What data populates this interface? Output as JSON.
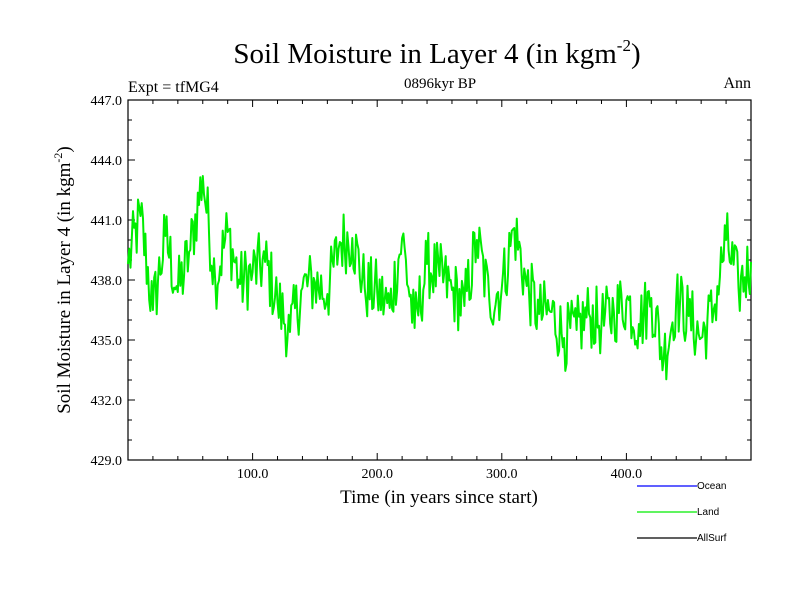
{
  "chart_data": {
    "type": "line",
    "title": "Soil Moisture in Layer 4 (in kgm",
    "title_superscript": "-2",
    "title_suffix": ")",
    "subtitle": "0896kyr BP",
    "left_label": "Expt = tfMG4",
    "right_label": "Ann",
    "xlabel": "Time (in years since start)",
    "ylabel": "Soil Moisture in Layer 4 (in kgm",
    "ylabel_superscript": "-2",
    "ylabel_suffix": ")",
    "xlim": [
      0,
      500
    ],
    "ylim": [
      429.0,
      447.0
    ],
    "xticks": [
      100,
      200,
      300,
      400
    ],
    "xtick_labels": [
      "100.0",
      "200.0",
      "300.0",
      "400.0"
    ],
    "yticks": [
      429,
      432,
      435,
      438,
      441,
      444,
      447
    ],
    "ytick_labels": [
      "429.0",
      "432.0",
      "435.0",
      "438.0",
      "441.0",
      "444.0",
      "447.0"
    ],
    "legend": [
      {
        "name": "Ocean",
        "color": "#0000ff"
      },
      {
        "name": "Land",
        "color": "#00ee00"
      },
      {
        "name": "AllSurf",
        "color": "#000000"
      }
    ],
    "series": [
      {
        "name": "Land",
        "color": "#00ee00",
        "x_start": 0,
        "x_step": 10,
        "values": [
          438.8,
          441.2,
          436.5,
          440.2,
          437.4,
          439.5,
          443.2,
          438.0,
          440.4,
          437.8,
          438.4,
          438.9,
          436.9,
          435.4,
          437.6,
          437.9,
          437.3,
          439.9,
          440.1,
          437.6,
          437.4,
          436.6,
          440.1,
          435.6,
          438.8,
          438.2,
          437.5,
          436.7,
          440.0,
          437.0,
          437.6,
          440.6,
          437.7,
          436.3,
          436.4,
          435.1,
          435.5,
          436.3,
          435.8,
          436.4,
          437.0,
          435.8,
          437.1,
          434.1,
          437.0,
          436.2,
          435.1,
          436.5,
          440.0,
          437.6,
          438.9
        ]
      },
      {
        "name": "Ocean",
        "color": "#0000ff",
        "values": []
      },
      {
        "name": "AllSurf",
        "color": "#000000",
        "values": []
      }
    ]
  }
}
